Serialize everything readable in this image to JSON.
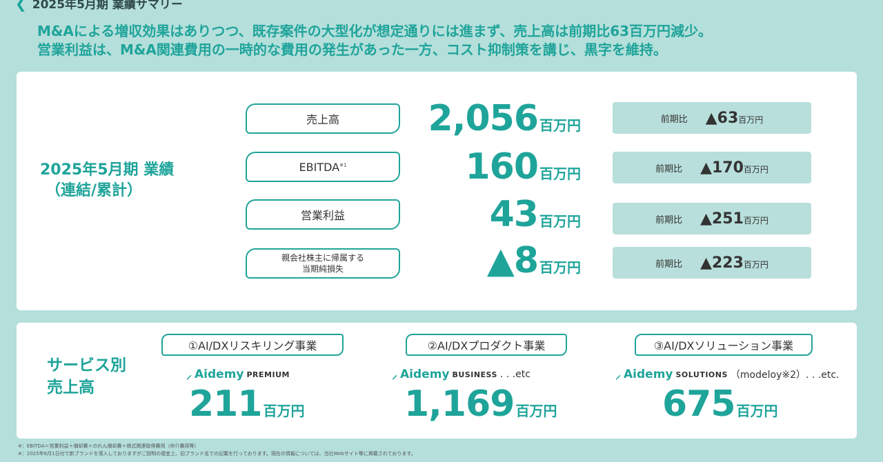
{
  "header": {
    "title": "2025年5月期 業績サマリー"
  },
  "headline": {
    "line1": "M&Aによる増収効果はありつつ、既存案件の大型化が想定通りには進まず、売上高は前期比63百万円減少。",
    "line2": "営業利益は、M&A関連費用の一時的な費用の発生があった一方、コスト抑制策を講じ、黒字を維持。"
  },
  "results": {
    "title": "2025年5月期 業績",
    "subtitle": "（連結/累計）",
    "yoy_label": "前期比",
    "unit": "百万円",
    "rows": [
      {
        "label": "売上高",
        "value": "2,056",
        "yoy": "▲63"
      },
      {
        "label": "EBITDA",
        "note": "※1",
        "value": "160",
        "yoy": "▲170"
      },
      {
        "label": "営業利益",
        "value": "43",
        "yoy": "▲251"
      },
      {
        "label_line1": "親会社株主に帰属する",
        "label_line2": "当期純損失",
        "value": "▲8",
        "yoy": "▲223"
      }
    ]
  },
  "services": {
    "title_line1": "サービス別",
    "title_line2": "売上高",
    "unit": "百万円",
    "items": [
      {
        "tab": "①AI/DXリスキリング事業",
        "brand": "Aidemy",
        "suffix": "PREMIUM",
        "extra": "",
        "value": "211"
      },
      {
        "tab": "②AI/DXプロダクト事業",
        "brand": "Aidemy",
        "suffix": "BUSINESS",
        "extra": ". . .etc",
        "value": "1,169"
      },
      {
        "tab": "③AI/DXソリューション事業",
        "brand": "Aidemy",
        "suffix": "SOLUTIONS",
        "extra": "（modeloy※2）. . .etc.",
        "value": "675"
      }
    ]
  },
  "footnotes": {
    "note1": "※：EBITDA＝営業利益＋償却費＋のれん償却費＋株式関連取得費用（仲介費用等）",
    "note2": "※：2025年6月1日付で新ブランドを導入しておりますがご説明の便宜上、旧ブランド名での記載を行っております。現在の情報については、当社Webサイト等に掲載されております。"
  },
  "colors": {
    "accent": "#1fa49a",
    "background": "#b5dfdb",
    "yoy_box": "#b8dfdb"
  }
}
